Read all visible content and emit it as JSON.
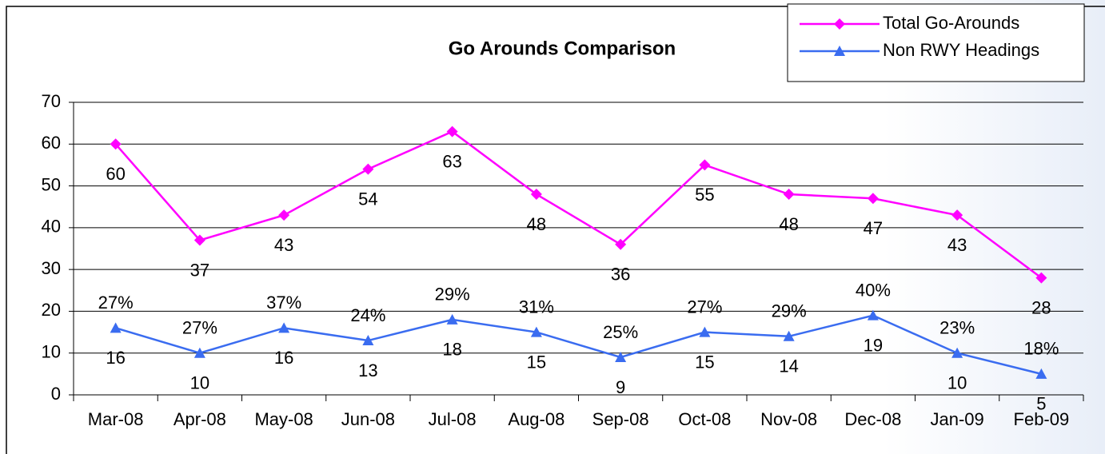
{
  "chart_data": {
    "type": "line",
    "title": "Go Arounds Comparison",
    "categories": [
      "Mar-08",
      "Apr-08",
      "May-08",
      "Jun-08",
      "Jul-08",
      "Aug-08",
      "Sep-08",
      "Oct-08",
      "Nov-08",
      "Dec-08",
      "Jan-09",
      "Feb-09"
    ],
    "series": [
      {
        "name": "Total Go-Arounds",
        "color": "#ff00ff",
        "marker": "diamond",
        "values": [
          60,
          37,
          43,
          54,
          63,
          48,
          36,
          55,
          48,
          47,
          43,
          28
        ]
      },
      {
        "name": "Non RWY Headings",
        "color": "#3a6cf0",
        "marker": "triangle",
        "values": [
          16,
          10,
          16,
          13,
          18,
          15,
          9,
          15,
          14,
          19,
          10,
          5
        ],
        "annotations": [
          "27%",
          "27%",
          "37%",
          "24%",
          "29%",
          "31%",
          "25%",
          "27%",
          "29%",
          "40%",
          "23%",
          "18%"
        ]
      }
    ],
    "ylim": [
      0,
      70
    ],
    "yticks": [
      0,
      10,
      20,
      30,
      40,
      50,
      60,
      70
    ],
    "grid": true,
    "legend": "top-right"
  }
}
